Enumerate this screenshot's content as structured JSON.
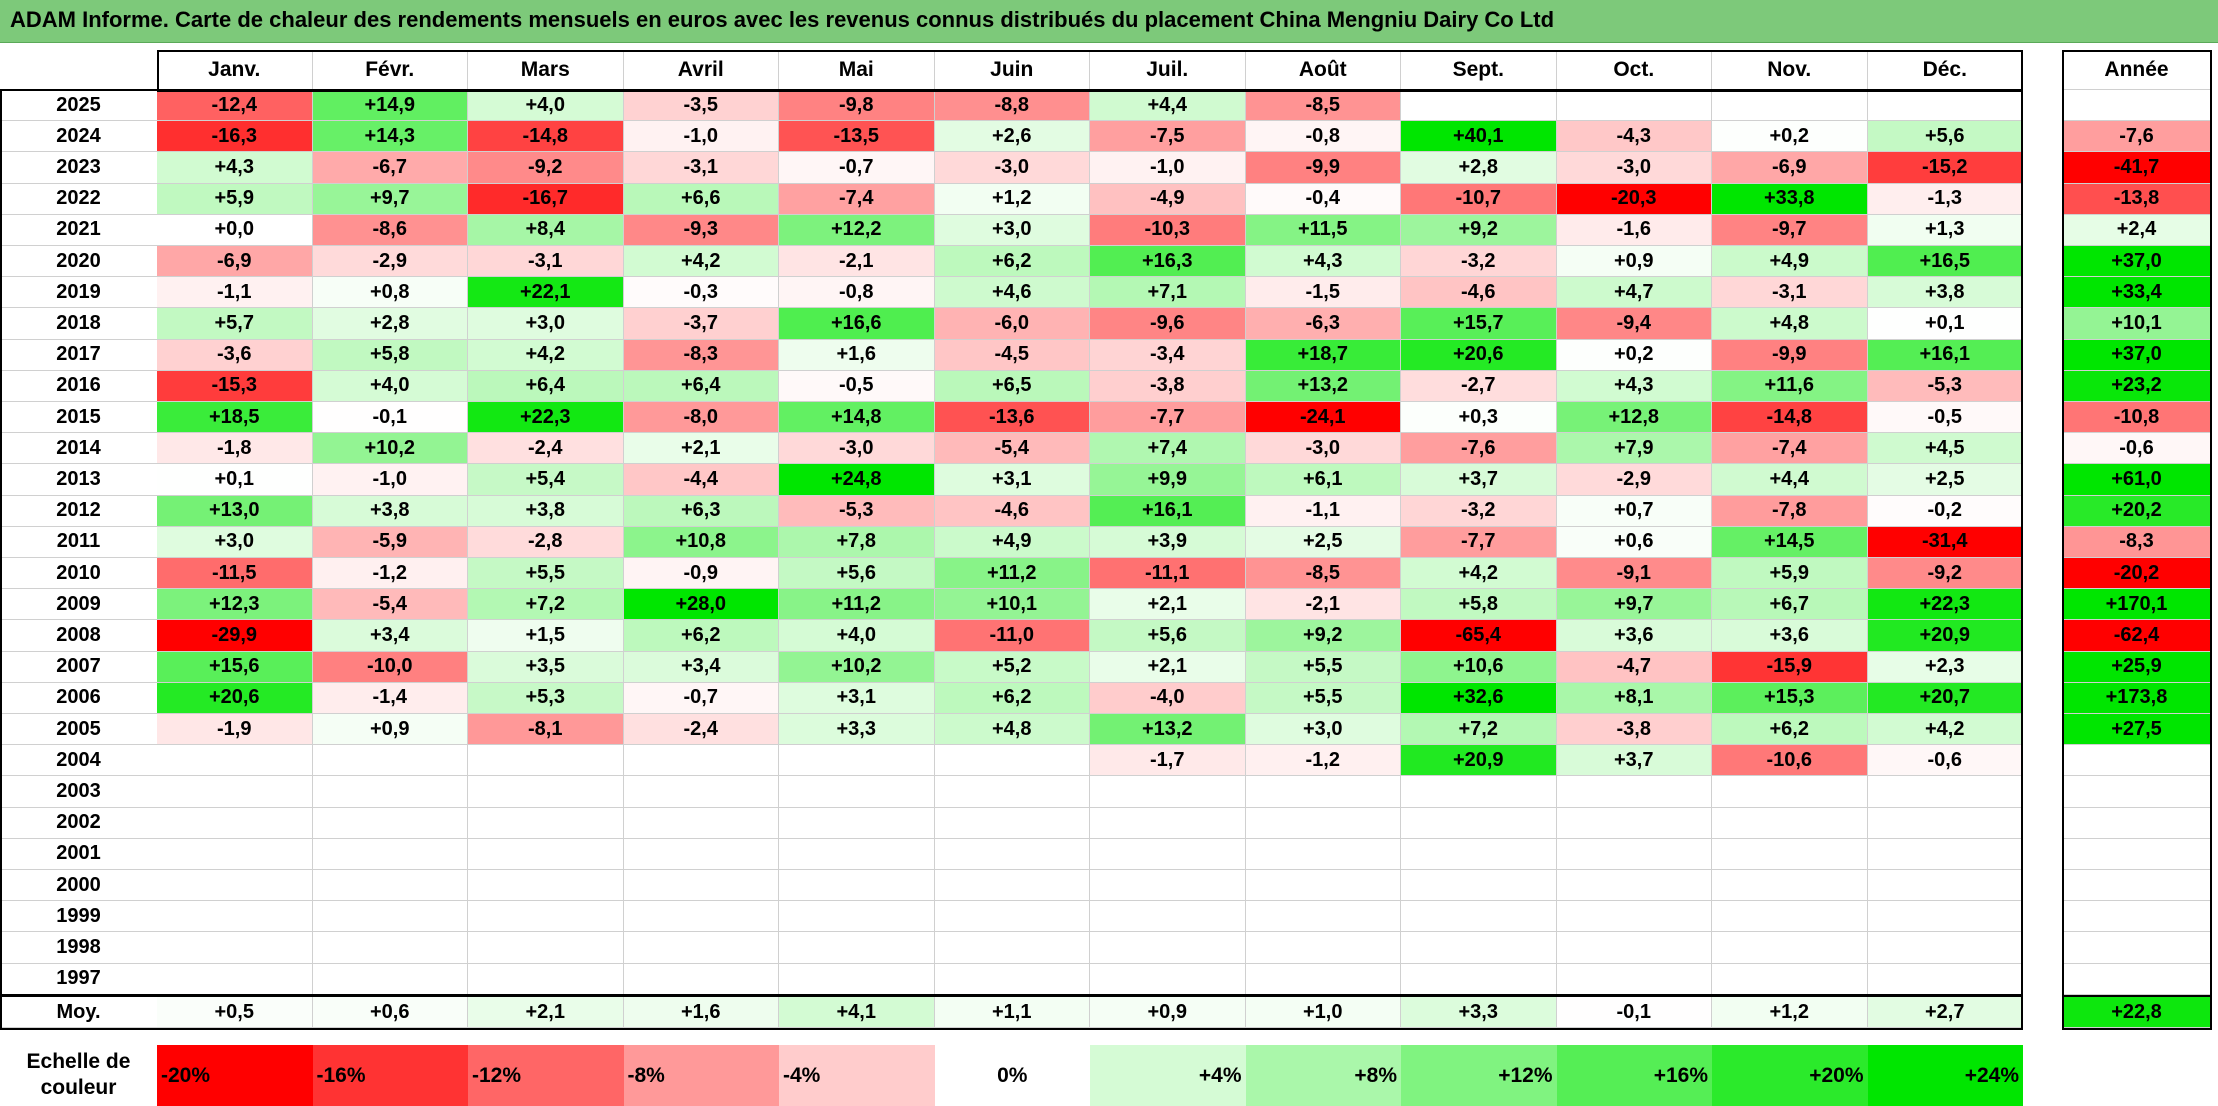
{
  "title": "ADAM Informe. Carte de chaleur des rendements mensuels en euros avec les revenus connus distribués du placement China Mengniu Dairy Co Ltd",
  "colors": {
    "title_bg": "#7dc97a",
    "neg_max": "#ff0000",
    "pos_max": "#00e000",
    "neutral": "#ffffff"
  },
  "chart_data": {
    "type": "heatmap",
    "columns": [
      "Janv.",
      "Févr.",
      "Mars",
      "Avril",
      "Mai",
      "Juin",
      "Juil.",
      "Août",
      "Sept.",
      "Oct.",
      "Nov.",
      "Déc."
    ],
    "year_header": "Année",
    "average_label": "Moy.",
    "rows": [
      {
        "year": "2025",
        "months": [
          "-12,4",
          "+14,9",
          "+4,0",
          "-3,5",
          "-9,8",
          "-8,8",
          "+4,4",
          "-8,5",
          "",
          "",
          "",
          ""
        ],
        "annual": ""
      },
      {
        "year": "2024",
        "months": [
          "-16,3",
          "+14,3",
          "-14,8",
          "-1,0",
          "-13,5",
          "+2,6",
          "-7,5",
          "-0,8",
          "+40,1",
          "-4,3",
          "+0,2",
          "+5,6"
        ],
        "annual": "-7,6"
      },
      {
        "year": "2023",
        "months": [
          "+4,3",
          "-6,7",
          "-9,2",
          "-3,1",
          "-0,7",
          "-3,0",
          "-1,0",
          "-9,9",
          "+2,8",
          "-3,0",
          "-6,9",
          "-15,2"
        ],
        "annual": "-41,7"
      },
      {
        "year": "2022",
        "months": [
          "+5,9",
          "+9,7",
          "-16,7",
          "+6,6",
          "-7,4",
          "+1,2",
          "-4,9",
          "-0,4",
          "-10,7",
          "-20,3",
          "+33,8",
          "-1,3"
        ],
        "annual": "-13,8"
      },
      {
        "year": "2021",
        "months": [
          "+0,0",
          "-8,6",
          "+8,4",
          "-9,3",
          "+12,2",
          "+3,0",
          "-10,3",
          "+11,5",
          "+9,2",
          "-1,6",
          "-9,7",
          "+1,3"
        ],
        "annual": "+2,4"
      },
      {
        "year": "2020",
        "months": [
          "-6,9",
          "-2,9",
          "-3,1",
          "+4,2",
          "-2,1",
          "+6,2",
          "+16,3",
          "+4,3",
          "-3,2",
          "+0,9",
          "+4,9",
          "+16,5"
        ],
        "annual": "+37,0"
      },
      {
        "year": "2019",
        "months": [
          "-1,1",
          "+0,8",
          "+22,1",
          "-0,3",
          "-0,8",
          "+4,6",
          "+7,1",
          "-1,5",
          "-4,6",
          "+4,7",
          "-3,1",
          "+3,8"
        ],
        "annual": "+33,4"
      },
      {
        "year": "2018",
        "months": [
          "+5,7",
          "+2,8",
          "+3,0",
          "-3,7",
          "+16,6",
          "-6,0",
          "-9,6",
          "-6,3",
          "+15,7",
          "-9,4",
          "+4,8",
          "+0,1"
        ],
        "annual": "+10,1"
      },
      {
        "year": "2017",
        "months": [
          "-3,6",
          "+5,8",
          "+4,2",
          "-8,3",
          "+1,6",
          "-4,5",
          "-3,4",
          "+18,7",
          "+20,6",
          "+0,2",
          "-9,9",
          "+16,1"
        ],
        "annual": "+37,0"
      },
      {
        "year": "2016",
        "months": [
          "-15,3",
          "+4,0",
          "+6,4",
          "+6,4",
          "-0,5",
          "+6,5",
          "-3,8",
          "+13,2",
          "-2,7",
          "+4,3",
          "+11,6",
          "-5,3"
        ],
        "annual": "+23,2"
      },
      {
        "year": "2015",
        "months": [
          "+18,5",
          "-0,1",
          "+22,3",
          "-8,0",
          "+14,8",
          "-13,6",
          "-7,7",
          "-24,1",
          "+0,3",
          "+12,8",
          "-14,8",
          "-0,5"
        ],
        "annual": "-10,8"
      },
      {
        "year": "2014",
        "months": [
          "-1,8",
          "+10,2",
          "-2,4",
          "+2,1",
          "-3,0",
          "-5,4",
          "+7,4",
          "-3,0",
          "-7,6",
          "+7,9",
          "-7,4",
          "+4,5"
        ],
        "annual": "-0,6"
      },
      {
        "year": "2013",
        "months": [
          "+0,1",
          "-1,0",
          "+5,4",
          "-4,4",
          "+24,8",
          "+3,1",
          "+9,9",
          "+6,1",
          "+3,7",
          "-2,9",
          "+4,4",
          "+2,5"
        ],
        "annual": "+61,0"
      },
      {
        "year": "2012",
        "months": [
          "+13,0",
          "+3,8",
          "+3,8",
          "+6,3",
          "-5,3",
          "-4,6",
          "+16,1",
          "-1,1",
          "-3,2",
          "+0,7",
          "-7,8",
          "-0,2"
        ],
        "annual": "+20,2"
      },
      {
        "year": "2011",
        "months": [
          "+3,0",
          "-5,9",
          "-2,8",
          "+10,8",
          "+7,8",
          "+4,9",
          "+3,9",
          "+2,5",
          "-7,7",
          "+0,6",
          "+14,5",
          "-31,4"
        ],
        "annual": "-8,3"
      },
      {
        "year": "2010",
        "months": [
          "-11,5",
          "-1,2",
          "+5,5",
          "-0,9",
          "+5,6",
          "+11,2",
          "-11,1",
          "-8,5",
          "+4,2",
          "-9,1",
          "+5,9",
          "-9,2"
        ],
        "annual": "-20,2"
      },
      {
        "year": "2009",
        "months": [
          "+12,3",
          "-5,4",
          "+7,2",
          "+28,0",
          "+11,2",
          "+10,1",
          "+2,1",
          "-2,1",
          "+5,8",
          "+9,7",
          "+6,7",
          "+22,3"
        ],
        "annual": "+170,1"
      },
      {
        "year": "2008",
        "months": [
          "-29,9",
          "+3,4",
          "+1,5",
          "+6,2",
          "+4,0",
          "-11,0",
          "+5,6",
          "+9,2",
          "-65,4",
          "+3,6",
          "+3,6",
          "+20,9"
        ],
        "annual": "-62,4"
      },
      {
        "year": "2007",
        "months": [
          "+15,6",
          "-10,0",
          "+3,5",
          "+3,4",
          "+10,2",
          "+5,2",
          "+2,1",
          "+5,5",
          "+10,6",
          "-4,7",
          "-15,9",
          "+2,3"
        ],
        "annual": "+25,9"
      },
      {
        "year": "2006",
        "months": [
          "+20,6",
          "-1,4",
          "+5,3",
          "-0,7",
          "+3,1",
          "+6,2",
          "-4,0",
          "+5,5",
          "+32,6",
          "+8,1",
          "+15,3",
          "+20,7"
        ],
        "annual": "+173,8"
      },
      {
        "year": "2005",
        "months": [
          "-1,9",
          "+0,9",
          "-8,1",
          "-2,4",
          "+3,3",
          "+4,8",
          "+13,2",
          "+3,0",
          "+7,2",
          "-3,8",
          "+6,2",
          "+4,2"
        ],
        "annual": "+27,5"
      },
      {
        "year": "2004",
        "months": [
          "",
          "",
          "",
          "",
          "",
          "",
          "-1,7",
          "-1,2",
          "+20,9",
          "+3,7",
          "-10,6",
          "-0,6"
        ],
        "annual": ""
      },
      {
        "year": "2003",
        "months": [
          "",
          "",
          "",
          "",
          "",
          "",
          "",
          "",
          "",
          "",
          "",
          ""
        ],
        "annual": ""
      },
      {
        "year": "2002",
        "months": [
          "",
          "",
          "",
          "",
          "",
          "",
          "",
          "",
          "",
          "",
          "",
          ""
        ],
        "annual": ""
      },
      {
        "year": "2001",
        "months": [
          "",
          "",
          "",
          "",
          "",
          "",
          "",
          "",
          "",
          "",
          "",
          ""
        ],
        "annual": ""
      },
      {
        "year": "2000",
        "months": [
          "",
          "",
          "",
          "",
          "",
          "",
          "",
          "",
          "",
          "",
          "",
          ""
        ],
        "annual": ""
      },
      {
        "year": "1999",
        "months": [
          "",
          "",
          "",
          "",
          "",
          "",
          "",
          "",
          "",
          "",
          "",
          ""
        ],
        "annual": ""
      },
      {
        "year": "1998",
        "months": [
          "",
          "",
          "",
          "",
          "",
          "",
          "",
          "",
          "",
          "",
          "",
          ""
        ],
        "annual": ""
      },
      {
        "year": "1997",
        "months": [
          "",
          "",
          "",
          "",
          "",
          "",
          "",
          "",
          "",
          "",
          "",
          ""
        ],
        "annual": ""
      }
    ],
    "averages": [
      "+0,5",
      "+0,6",
      "+2,1",
      "+1,6",
      "+4,1",
      "+1,1",
      "+0,9",
      "+1,0",
      "+3,3",
      "-0,1",
      "+1,2",
      "+2,7"
    ],
    "average_annual": "+22,8",
    "scale_label": "Echelle de couleur",
    "scale": [
      {
        "label": "-20%",
        "value": -20
      },
      {
        "label": "-16%",
        "value": -16
      },
      {
        "label": "-12%",
        "value": -12
      },
      {
        "label": "-8%",
        "value": -8
      },
      {
        "label": "-4%",
        "value": -4
      },
      {
        "label": "0%",
        "value": 0
      },
      {
        "label": "+4%",
        "value": 4
      },
      {
        "label": "+8%",
        "value": 8
      },
      {
        "label": "+12%",
        "value": 12
      },
      {
        "label": "+16%",
        "value": 16
      },
      {
        "label": "+20%",
        "value": 20
      },
      {
        "label": "+24%",
        "value": 24
      }
    ]
  }
}
